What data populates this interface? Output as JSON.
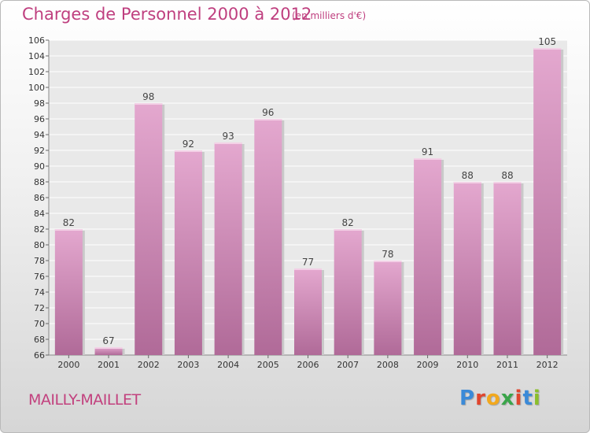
{
  "header": {
    "title": "Charges de Personnel 2000 à 2012",
    "unit": "(en milliers d'€)"
  },
  "footer": {
    "town": "MAILLY-MAILLET",
    "logo": [
      "P",
      "r",
      "o",
      "x",
      "i",
      "t",
      "i"
    ],
    "logo_colors": [
      "#3b8ad8",
      "#e0462e",
      "#f2a81d",
      "#3aa54a",
      "#e0462e",
      "#3b8ad8",
      "#8bbf2c"
    ]
  },
  "chart_data": {
    "type": "bar",
    "title": "Charges de Personnel 2000 à 2012",
    "subtitle": "(en milliers d'€)",
    "categories": [
      "2000",
      "2001",
      "2002",
      "2003",
      "2004",
      "2005",
      "2006",
      "2007",
      "2008",
      "2009",
      "2010",
      "2011",
      "2012"
    ],
    "values": [
      82,
      67,
      98,
      92,
      93,
      96,
      77,
      82,
      78,
      91,
      88,
      88,
      105
    ],
    "ylim": [
      66,
      106
    ],
    "yticks": [
      66,
      68,
      70,
      72,
      74,
      76,
      78,
      80,
      82,
      84,
      86,
      88,
      90,
      92,
      94,
      96,
      98,
      100,
      102,
      104,
      106
    ],
    "grid": true,
    "bar_color": "#d88ab8"
  }
}
